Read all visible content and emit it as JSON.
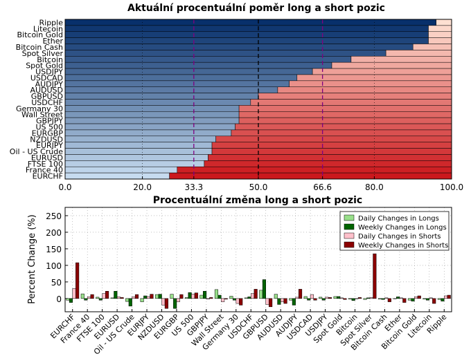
{
  "chart_data": [
    {
      "type": "bar",
      "orientation": "horizontal",
      "stacked": true,
      "title": "Aktuální procentuální poměr long a short pozic",
      "categories": [
        "Ripple",
        "Litecoin",
        "Bitcoin Gold",
        "Ether",
        "Bitcoin Cash",
        "Spot Silver",
        "Bitcoin",
        "Spot Gold",
        "USDJPY",
        "USDCAD",
        "AUDJPY",
        "AUDUSD",
        "GBPUSD",
        "USDCHF",
        "Germany 30",
        "Wall Street",
        "GBPJPY",
        "US 500",
        "EURGBP",
        "NZDUSD",
        "EURJPY",
        "Oil - US Crude",
        "EURUSD",
        "FTSE 100",
        "France 40",
        "EURCHF"
      ],
      "long_percent": [
        96,
        94,
        94,
        94,
        90,
        83,
        74,
        69,
        64,
        60,
        58,
        55,
        50,
        48,
        45,
        45,
        45,
        44,
        43,
        39,
        38,
        38,
        37,
        36,
        29,
        27
      ],
      "xlim": [
        0,
        100
      ],
      "xticks": [
        "0.0",
        "20.0",
        "33.3",
        "50.0",
        "66.6",
        "80.0",
        "100.0"
      ],
      "xtick_values": [
        0,
        20,
        33.3,
        50,
        66.6,
        80,
        100
      ],
      "highlight_ticks": [
        "33.3",
        "66.6"
      ],
      "highlight_color": "#800080",
      "reference_lines": [
        33.3,
        50,
        66.6
      ],
      "grid": true,
      "long_color_range": [
        "#08306b",
        "#c6dbef"
      ],
      "short_color_range": [
        "#fee0d2",
        "#cb181d"
      ]
    },
    {
      "type": "bar",
      "title": "Procentuální změna long a short pozic",
      "ylabel": "Percent Change (%)",
      "ylim": [
        -40,
        275
      ],
      "yticks": [
        0,
        50,
        100,
        150,
        200,
        250
      ],
      "grid": true,
      "legend_position": "top-right",
      "categories": [
        "EURCHF",
        "France 40",
        "FTSE 100",
        "EURUSD",
        "Oil - US Crude",
        "EURJPY",
        "NZDUSD",
        "EURGBP",
        "US 500",
        "GBPJPY",
        "Wall Street",
        "Germany 30",
        "USDCHF",
        "GBPUSD",
        "AUDUSD",
        "AUDJPY",
        "USDCAD",
        "USDJPY",
        "Spot Gold",
        "Bitcoin",
        "Spot Silver",
        "Bitcoin Cash",
        "Ether",
        "Bitcoin Gold",
        "Litecoin",
        "Ripple"
      ],
      "series": [
        {
          "name": "Daily Changes in Longs",
          "color": "#98df8a",
          "values": [
            -5,
            14,
            4,
            2,
            -9,
            -10,
            12,
            13,
            3,
            10,
            27,
            7,
            2,
            25,
            13,
            -5,
            6,
            4,
            6,
            -2,
            -3,
            -2,
            -1,
            -5,
            -2,
            -3
          ]
        },
        {
          "name": "Weekly Changes in Longs",
          "color": "#006400",
          "values": [
            -12,
            -5,
            -5,
            22,
            -23,
            8,
            13,
            -30,
            18,
            22,
            10,
            -5,
            5,
            57,
            -18,
            -20,
            -5,
            -5,
            6,
            -6,
            2,
            -3,
            5,
            -8,
            -5,
            -8
          ]
        },
        {
          "name": "Daily Changes in Shorts",
          "color": "#ffc0cb",
          "values": [
            30,
            5,
            15,
            5,
            5,
            6,
            -20,
            -10,
            13,
            -2,
            -10,
            -15,
            15,
            -18,
            -10,
            4,
            12,
            4,
            2,
            -1,
            3,
            2,
            2,
            5,
            2,
            8
          ]
        },
        {
          "name": "Weekly Changes in Shorts",
          "color": "#8b0000",
          "values": [
            108,
            12,
            22,
            3,
            12,
            13,
            -30,
            12,
            17,
            3,
            -2,
            -20,
            28,
            -25,
            -15,
            28,
            -5,
            3,
            -3,
            3,
            135,
            -10,
            -12,
            8,
            -15,
            10
          ]
        }
      ]
    }
  ]
}
